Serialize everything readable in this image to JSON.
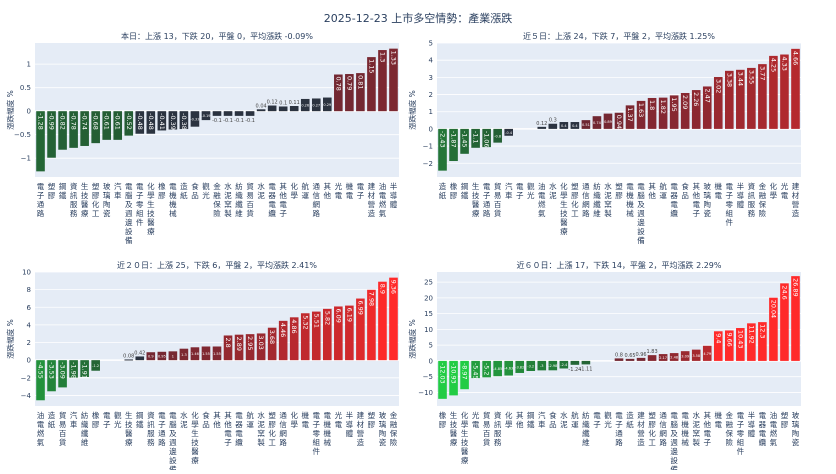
{
  "title": "2025-12-23 上市多空情勢：產業漲跌",
  "colors": {
    "plot_bg": "#e5ecf6",
    "neutral": "#2b3340",
    "up_max": "#ff2a2a",
    "down_max": "#22cc44",
    "grid": "#ffffff"
  },
  "chart_data": [
    {
      "type": "bar",
      "title": "本日：上漲 13，下跌 20，平盤 0，平均漲跌 -0.09%",
      "ylabel": "漲跌幅度 %",
      "ylim": [
        -1.4,
        1.45
      ],
      "yticks": [
        -1,
        -0.5,
        0,
        0.5,
        1
      ],
      "grid": true,
      "categories": [
        "電子通路",
        "塑膠",
        "鋼鐵",
        "資訊服務",
        "生技醫療",
        "塑膠化工",
        "玻璃陶瓷",
        "汽車",
        "電腦及週邊設備",
        "電子零組件",
        "化學生技醫療",
        "橡膠",
        "電機機械",
        "造紙",
        "食品",
        "觀光",
        "金融保險",
        "水泥窯製",
        "紡織纖維",
        "貿易百貨",
        "水泥",
        "電器電纜",
        "其他電子",
        "化學",
        "航運",
        "通信網路",
        "其他",
        "光電",
        "機電",
        "電子",
        "建材營造",
        "油電燃氣",
        "半導體"
      ],
      "values": [
        -1.28,
        -0.99,
        -0.82,
        -0.78,
        -0.74,
        -0.68,
        -0.61,
        -0.61,
        -0.52,
        -0.48,
        -0.48,
        -0.41,
        -0.39,
        -0.38,
        -0.33,
        -0.19,
        -0.1,
        -0.1,
        -0.1,
        -0.1,
        0.04,
        0.12,
        0.1,
        0.11,
        0.26,
        0.27,
        0.29,
        0.78,
        0.79,
        0.81,
        1.15,
        1.3,
        1.33
      ]
    },
    {
      "type": "bar",
      "title": "近５日：上漲 24，下跌 7，平盤 2，平均漲跌 1.25%",
      "ylabel": "漲跌幅度 %",
      "ylim": [
        -2.8,
        5
      ],
      "yticks": [
        -2,
        -1,
        0,
        1,
        2,
        3,
        4,
        5
      ],
      "grid": true,
      "categories": [
        "造紙",
        "橡膠",
        "鋼鐵",
        "生技醫療",
        "電子通路",
        "貿易百貨",
        "汽車",
        "電子",
        "觀光",
        "油電燃氣",
        "水泥",
        "化學生技醫療",
        "塑膠化工",
        "通信網路",
        "紡織纖維",
        "水泥窯製",
        "塑膠",
        "電機機械",
        "電腦及週邊設備",
        "其他",
        "航運",
        "電器電纜",
        "食品",
        "其他電子",
        "玻璃陶瓷",
        "機電",
        "電子零組件",
        "半導體",
        "資訊服務",
        "金融保險",
        "化學",
        "光電",
        "建材營造"
      ],
      "values": [
        -2.43,
        -1.87,
        -1.45,
        -1.1,
        -1.06,
        -0.8,
        -0.4,
        0,
        0,
        0.12,
        0.3,
        0.4,
        0.4,
        0.51,
        0.74,
        0.89,
        0.94,
        1.37,
        1.63,
        1.8,
        1.82,
        1.95,
        2.09,
        2.26,
        2.47,
        3.02,
        3.38,
        3.44,
        3.55,
        3.77,
        4.25,
        4.33,
        4.66
      ]
    },
    {
      "type": "bar",
      "title": "近２０日：上漲 25，下跌 6，平盤 2，平均漲跌 2.41%",
      "ylabel": "漲跌幅度 %",
      "ylim": [
        -5.2,
        10
      ],
      "yticks": [
        -4,
        -2,
        0,
        2,
        4,
        6,
        8,
        10
      ],
      "grid": true,
      "categories": [
        "油電燃氣",
        "造紙",
        "貿易百貨",
        "汽車",
        "紡織纖維",
        "橡膠",
        "電子",
        "觀光",
        "生技醫療",
        "鋼鐵",
        "資訊服務",
        "電子通路",
        "電腦及週邊設備",
        "水泥",
        "化學生技醫療",
        "食品",
        "其他",
        "其他電子",
        "電器電纜",
        "航運",
        "水泥窯製",
        "塑膠化工",
        "通信網路",
        "化學",
        "機電",
        "電子零組件",
        "電機機械",
        "光電",
        "半導體",
        "建材營造",
        "塑膠",
        "玻璃陶瓷",
        "金融保險"
      ],
      "values": [
        -4.55,
        -3.53,
        -3.09,
        -1.98,
        -1.91,
        -1.2,
        0,
        0,
        0.08,
        0.42,
        0.9,
        0.95,
        1.0,
        1.3,
        1.46,
        1.55,
        1.55,
        2.8,
        2.89,
        2.95,
        3.03,
        3.68,
        4.46,
        4.86,
        5.32,
        5.51,
        5.82,
        6.09,
        6.19,
        6.99,
        7.98,
        8.9,
        9.36
      ]
    },
    {
      "type": "bar",
      "title": "近６０日：上漲 17，下跌 14，平盤 2，平均漲跌 2.29%",
      "ylabel": "漲跌幅度 %",
      "ylim": [
        -14.3,
        28.2
      ],
      "yticks": [
        -10,
        -5,
        0,
        5,
        10,
        15,
        20,
        25
      ],
      "grid": true,
      "categories": [
        "橡膠",
        "生技醫療",
        "化學生技醫療",
        "光電",
        "貿易百貨",
        "資訊服務",
        "化學",
        "其他",
        "鋼鐵",
        "汽車",
        "食品",
        "水泥",
        "航運",
        "紡織纖維",
        "電子",
        "觀光",
        "電子通路",
        "造紙",
        "建材營造",
        "塑膠化工",
        "通信網路",
        "電腦及週邊設備",
        "電機機械",
        "水泥窯製",
        "其他電子",
        "機電",
        "金融保險",
        "電子零組件",
        "半導體",
        "電器電纜",
        "油電燃氣",
        "塑膠",
        "玻璃陶瓷"
      ],
      "values": [
        -12.03,
        -10.93,
        -8.97,
        -5.45,
        -5.2,
        -4.85,
        -4.63,
        -3.82,
        -3.2,
        -3.0,
        -2.98,
        -2.4,
        -1.24,
        -1.11,
        0,
        0,
        0.8,
        0.65,
        0.96,
        1.83,
        2.17,
        2.48,
        3.09,
        3.58,
        4.79,
        9.4,
        9.66,
        10.43,
        11.92,
        12.3,
        20.04,
        24.6,
        26.89
      ]
    }
  ]
}
